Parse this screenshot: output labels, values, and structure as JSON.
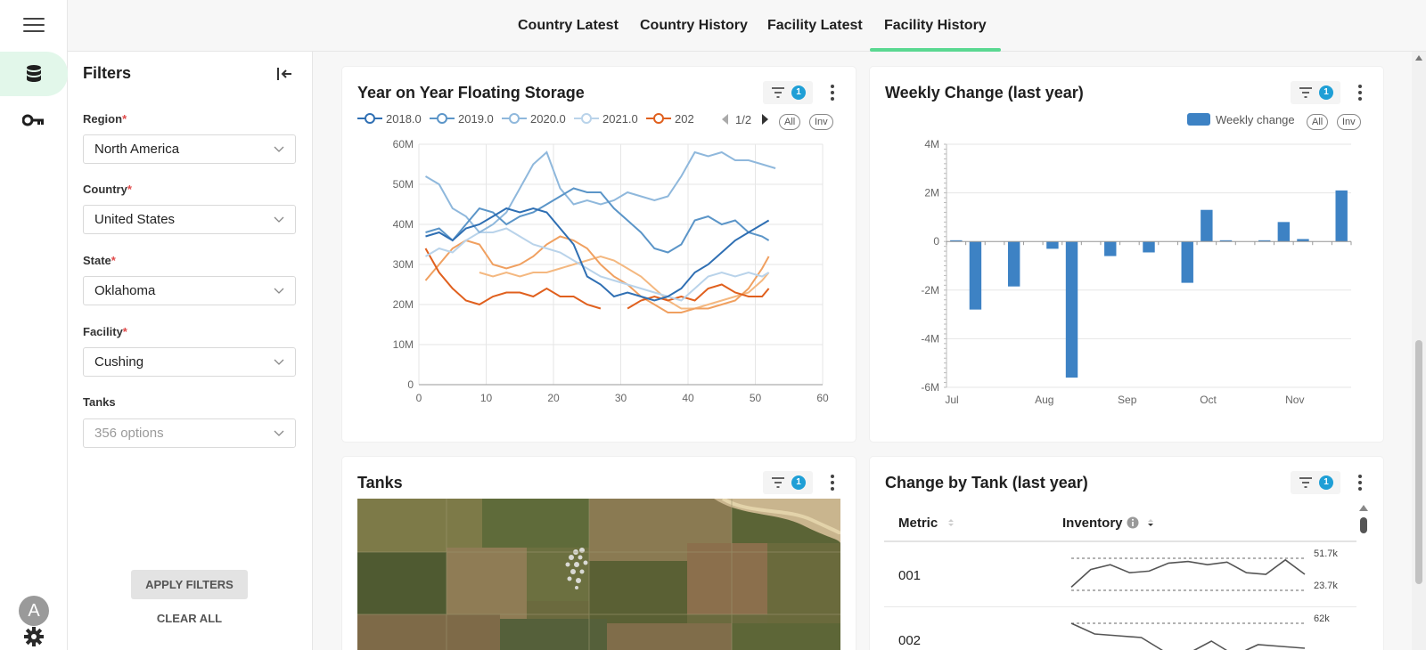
{
  "nav": {
    "tabs": [
      {
        "label": "Country Latest"
      },
      {
        "label": "Country History"
      },
      {
        "label": "Facility Latest"
      },
      {
        "label": "Facility History",
        "active": true
      }
    ]
  },
  "rail": {
    "icons": [
      "menu-icon",
      "database-icon",
      "key-icon",
      "settings-icon"
    ],
    "avatar_initial": "A",
    "accent": "#e2f7ea"
  },
  "filters": {
    "title": "Filters",
    "fields": [
      {
        "label": "Region",
        "required_mark": "*",
        "value": "North America"
      },
      {
        "label": "Country",
        "required_mark": "*",
        "value": "United States"
      },
      {
        "label": "State",
        "required_mark": "*",
        "value": "Oklahoma"
      },
      {
        "label": "Facility",
        "required_mark": "*",
        "value": "Cushing"
      },
      {
        "label": "Tanks",
        "required_mark": "",
        "placeholder": "356 options"
      }
    ],
    "apply_label": "APPLY FILTERS",
    "clear_label": "CLEAR ALL"
  },
  "cards": {
    "yoy": {
      "title": "Year on Year Floating Storage",
      "filter_count": "1",
      "legend": [
        "2018.0",
        "2019.0",
        "2020.0",
        "2021.0",
        "202"
      ],
      "pager": "1/2",
      "all_label": "All",
      "inv_label": "Inv"
    },
    "weekly": {
      "title": "Weekly Change (last year)",
      "filter_count": "1",
      "legend": [
        "Weekly change"
      ],
      "all_label": "All",
      "inv_label": "Inv"
    },
    "tanks": {
      "title": "Tanks",
      "filter_count": "1"
    },
    "change_by_tank": {
      "title": "Change by Tank (last year)",
      "filter_count": "1",
      "col_metric": "Metric",
      "col_inventory": "Inventory",
      "rows": [
        {
          "metric": "001",
          "max": "51.7k",
          "min": "23.7k"
        },
        {
          "metric": "002",
          "max": "62k",
          "min": ""
        }
      ]
    }
  },
  "chart_data": [
    {
      "type": "line",
      "title": "Year on Year Floating Storage",
      "x_ticks": [
        "0",
        "10",
        "20",
        "30",
        "40",
        "50",
        "60"
      ],
      "y_ticks": [
        "0",
        "10M",
        "20M",
        "30M",
        "40M",
        "50M",
        "60M"
      ],
      "xlim": [
        0,
        60
      ],
      "ylim": [
        0,
        60000000
      ],
      "grid": true,
      "legend_position": "top",
      "series": [
        {
          "name": "2018.0",
          "color": "#2f6fb3",
          "x": [
            1,
            3,
            5,
            7,
            9,
            11,
            13,
            15,
            17,
            19,
            21,
            23,
            25,
            27,
            29,
            31,
            33,
            35,
            37,
            39,
            41,
            43,
            45,
            47,
            49,
            51,
            52
          ],
          "y": [
            37,
            38,
            36,
            39,
            40,
            42,
            44,
            43,
            44,
            43,
            39,
            35,
            27,
            25,
            22,
            23,
            22,
            21,
            22,
            24,
            28,
            30,
            33,
            36,
            38,
            40,
            41
          ]
        },
        {
          "name": "2019.0",
          "color": "#5b95c8",
          "x": [
            1,
            3,
            5,
            7,
            9,
            11,
            13,
            15,
            17,
            19,
            21,
            23,
            25,
            27,
            29,
            31,
            33,
            35,
            37,
            39,
            41,
            43,
            45,
            47,
            49,
            51,
            52
          ],
          "y": [
            38,
            39,
            36,
            40,
            44,
            43,
            40,
            42,
            43,
            45,
            47,
            49,
            48,
            48,
            44,
            41,
            38,
            34,
            33,
            35,
            41,
            42,
            40,
            41,
            38,
            37,
            36
          ]
        },
        {
          "name": "2020.0",
          "color": "#8fb8dc",
          "x": [
            1,
            3,
            5,
            7,
            9,
            11,
            13,
            15,
            17,
            19,
            21,
            23,
            25,
            27,
            29,
            31,
            33,
            35,
            37,
            39,
            41,
            43,
            45,
            47,
            49,
            51,
            53
          ],
          "y": [
            52,
            50,
            44,
            42,
            38,
            40,
            43,
            49,
            55,
            58,
            49,
            45,
            46,
            45,
            46,
            48,
            47,
            46,
            47,
            52,
            58,
            57,
            58,
            56,
            56,
            55,
            54
          ]
        },
        {
          "name": "2021.0",
          "color": "#b9d3ea",
          "x": [
            1,
            3,
            5,
            7,
            9,
            11,
            13,
            15,
            17,
            19,
            21,
            23,
            25,
            27,
            29,
            31,
            33,
            35,
            37,
            39,
            41,
            43,
            45,
            47,
            49,
            51,
            52
          ],
          "y": [
            32,
            34,
            33,
            36,
            38,
            38,
            39,
            37,
            35,
            34,
            33,
            31,
            29,
            27,
            26,
            25,
            24,
            23,
            22,
            21,
            24,
            27,
            28,
            27,
            28,
            27,
            28
          ]
        },
        {
          "name": "202",
          "color": "#e0601e",
          "x": [
            1,
            3,
            5,
            7,
            9,
            11,
            13,
            15,
            17,
            19,
            21,
            23,
            25,
            27,
            29,
            31,
            33,
            35,
            37,
            39,
            41,
            43,
            45,
            47,
            49,
            51,
            52
          ],
          "y": [
            34,
            28,
            24,
            21,
            20,
            22,
            23,
            23,
            22,
            24,
            22,
            22,
            20,
            19,
            null,
            19,
            21,
            22,
            21,
            22,
            21,
            24,
            25,
            23,
            22,
            22,
            24
          ]
        },
        {
          "name": "",
          "color": "#f0a060",
          "x": [
            1,
            3,
            5,
            7,
            9,
            11,
            13,
            15,
            17,
            19,
            21,
            23,
            25,
            27,
            29,
            31,
            33,
            35,
            37,
            39,
            41,
            43,
            45,
            47,
            49,
            51,
            52
          ],
          "y": [
            26,
            30,
            34,
            36,
            35,
            30,
            29,
            30,
            32,
            35,
            37,
            36,
            34,
            30,
            27,
            25,
            22,
            20,
            18,
            18,
            19,
            19,
            20,
            21,
            24,
            29,
            32
          ]
        },
        {
          "name": "",
          "color": "#f4b880",
          "x": [
            9,
            11,
            13,
            15,
            17,
            19,
            21,
            23,
            25,
            27,
            29,
            31,
            33,
            35,
            37,
            39,
            41,
            43,
            45,
            47,
            49,
            51,
            52
          ],
          "y": [
            28,
            27,
            28,
            27,
            28,
            28,
            29,
            30,
            31,
            32,
            31,
            29,
            27,
            24,
            21,
            19,
            19,
            20,
            21,
            22,
            23,
            26,
            28
          ]
        }
      ]
    },
    {
      "type": "bar",
      "title": "Weekly Change (last year)",
      "x_ticks": [
        "Jul",
        "Aug",
        "Sep",
        "Oct",
        "Nov"
      ],
      "y_ticks": [
        "-6M",
        "-4M",
        "-2M",
        "0",
        "2M",
        "4M"
      ],
      "ylim": [
        -6000000,
        4000000
      ],
      "grid": true,
      "legend_position": "top-right",
      "series": [
        {
          "name": "Weekly change",
          "color": "#3d82c4",
          "values": [
            0.05,
            -2.8,
            0,
            -1.85,
            0,
            -0.3,
            -5.6,
            0,
            -0.6,
            0,
            -0.45,
            0,
            -1.7,
            1.3,
            0.05,
            0,
            0.05,
            0.8,
            0.1,
            0,
            2.1
          ]
        }
      ]
    }
  ],
  "sparklines": [
    {
      "values": [
        0.1,
        0.65,
        0.8,
        0.55,
        0.6,
        0.85,
        0.9,
        0.8,
        0.88,
        0.55,
        0.5,
        0.95,
        0.5
      ]
    },
    {
      "values": [
        1.0,
        0.7,
        0.65,
        0.6,
        0.2,
        0.15,
        0.5,
        0.1,
        0.4,
        0.35,
        0.3
      ]
    }
  ]
}
